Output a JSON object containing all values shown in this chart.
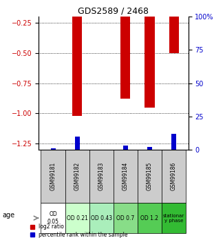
{
  "title": "GDS2589 / 2468",
  "samples": [
    "GSM99181",
    "GSM99182",
    "GSM99183",
    "GSM99184",
    "GSM99185",
    "GSM99186"
  ],
  "log2_ratio": [
    0.0,
    -1.02,
    0.0,
    -0.88,
    -0.95,
    -0.5
  ],
  "percentile_rank": [
    1.0,
    10.0,
    0.0,
    3.0,
    2.0,
    12.0
  ],
  "age_labels": [
    "OD\n0.05",
    "OD 0.21",
    "OD 0.43",
    "OD 0.7",
    "OD 1.2",
    "stationar\ny phase"
  ],
  "age_colors": [
    "#ffffff",
    "#ccffcc",
    "#99ee99",
    "#66dd66",
    "#33cc33",
    "#00bb00"
  ],
  "ylim_left": [
    -1.3,
    -0.2
  ],
  "ylim_right": [
    0,
    100
  ],
  "left_ticks": [
    -1.25,
    -1.0,
    -0.75,
    -0.5,
    -0.25
  ],
  "right_ticks": [
    0,
    25,
    50,
    75,
    100
  ],
  "bar_color_red": "#cc0000",
  "bar_color_blue": "#0000cc",
  "grid_color": "#000000",
  "xlabel_color_red": "#cc0000",
  "xlabel_color_blue": "#0000cc",
  "header_bg": "#cccccc",
  "legend_red": "log2 ratio",
  "legend_blue": "percentile rank within the sample"
}
